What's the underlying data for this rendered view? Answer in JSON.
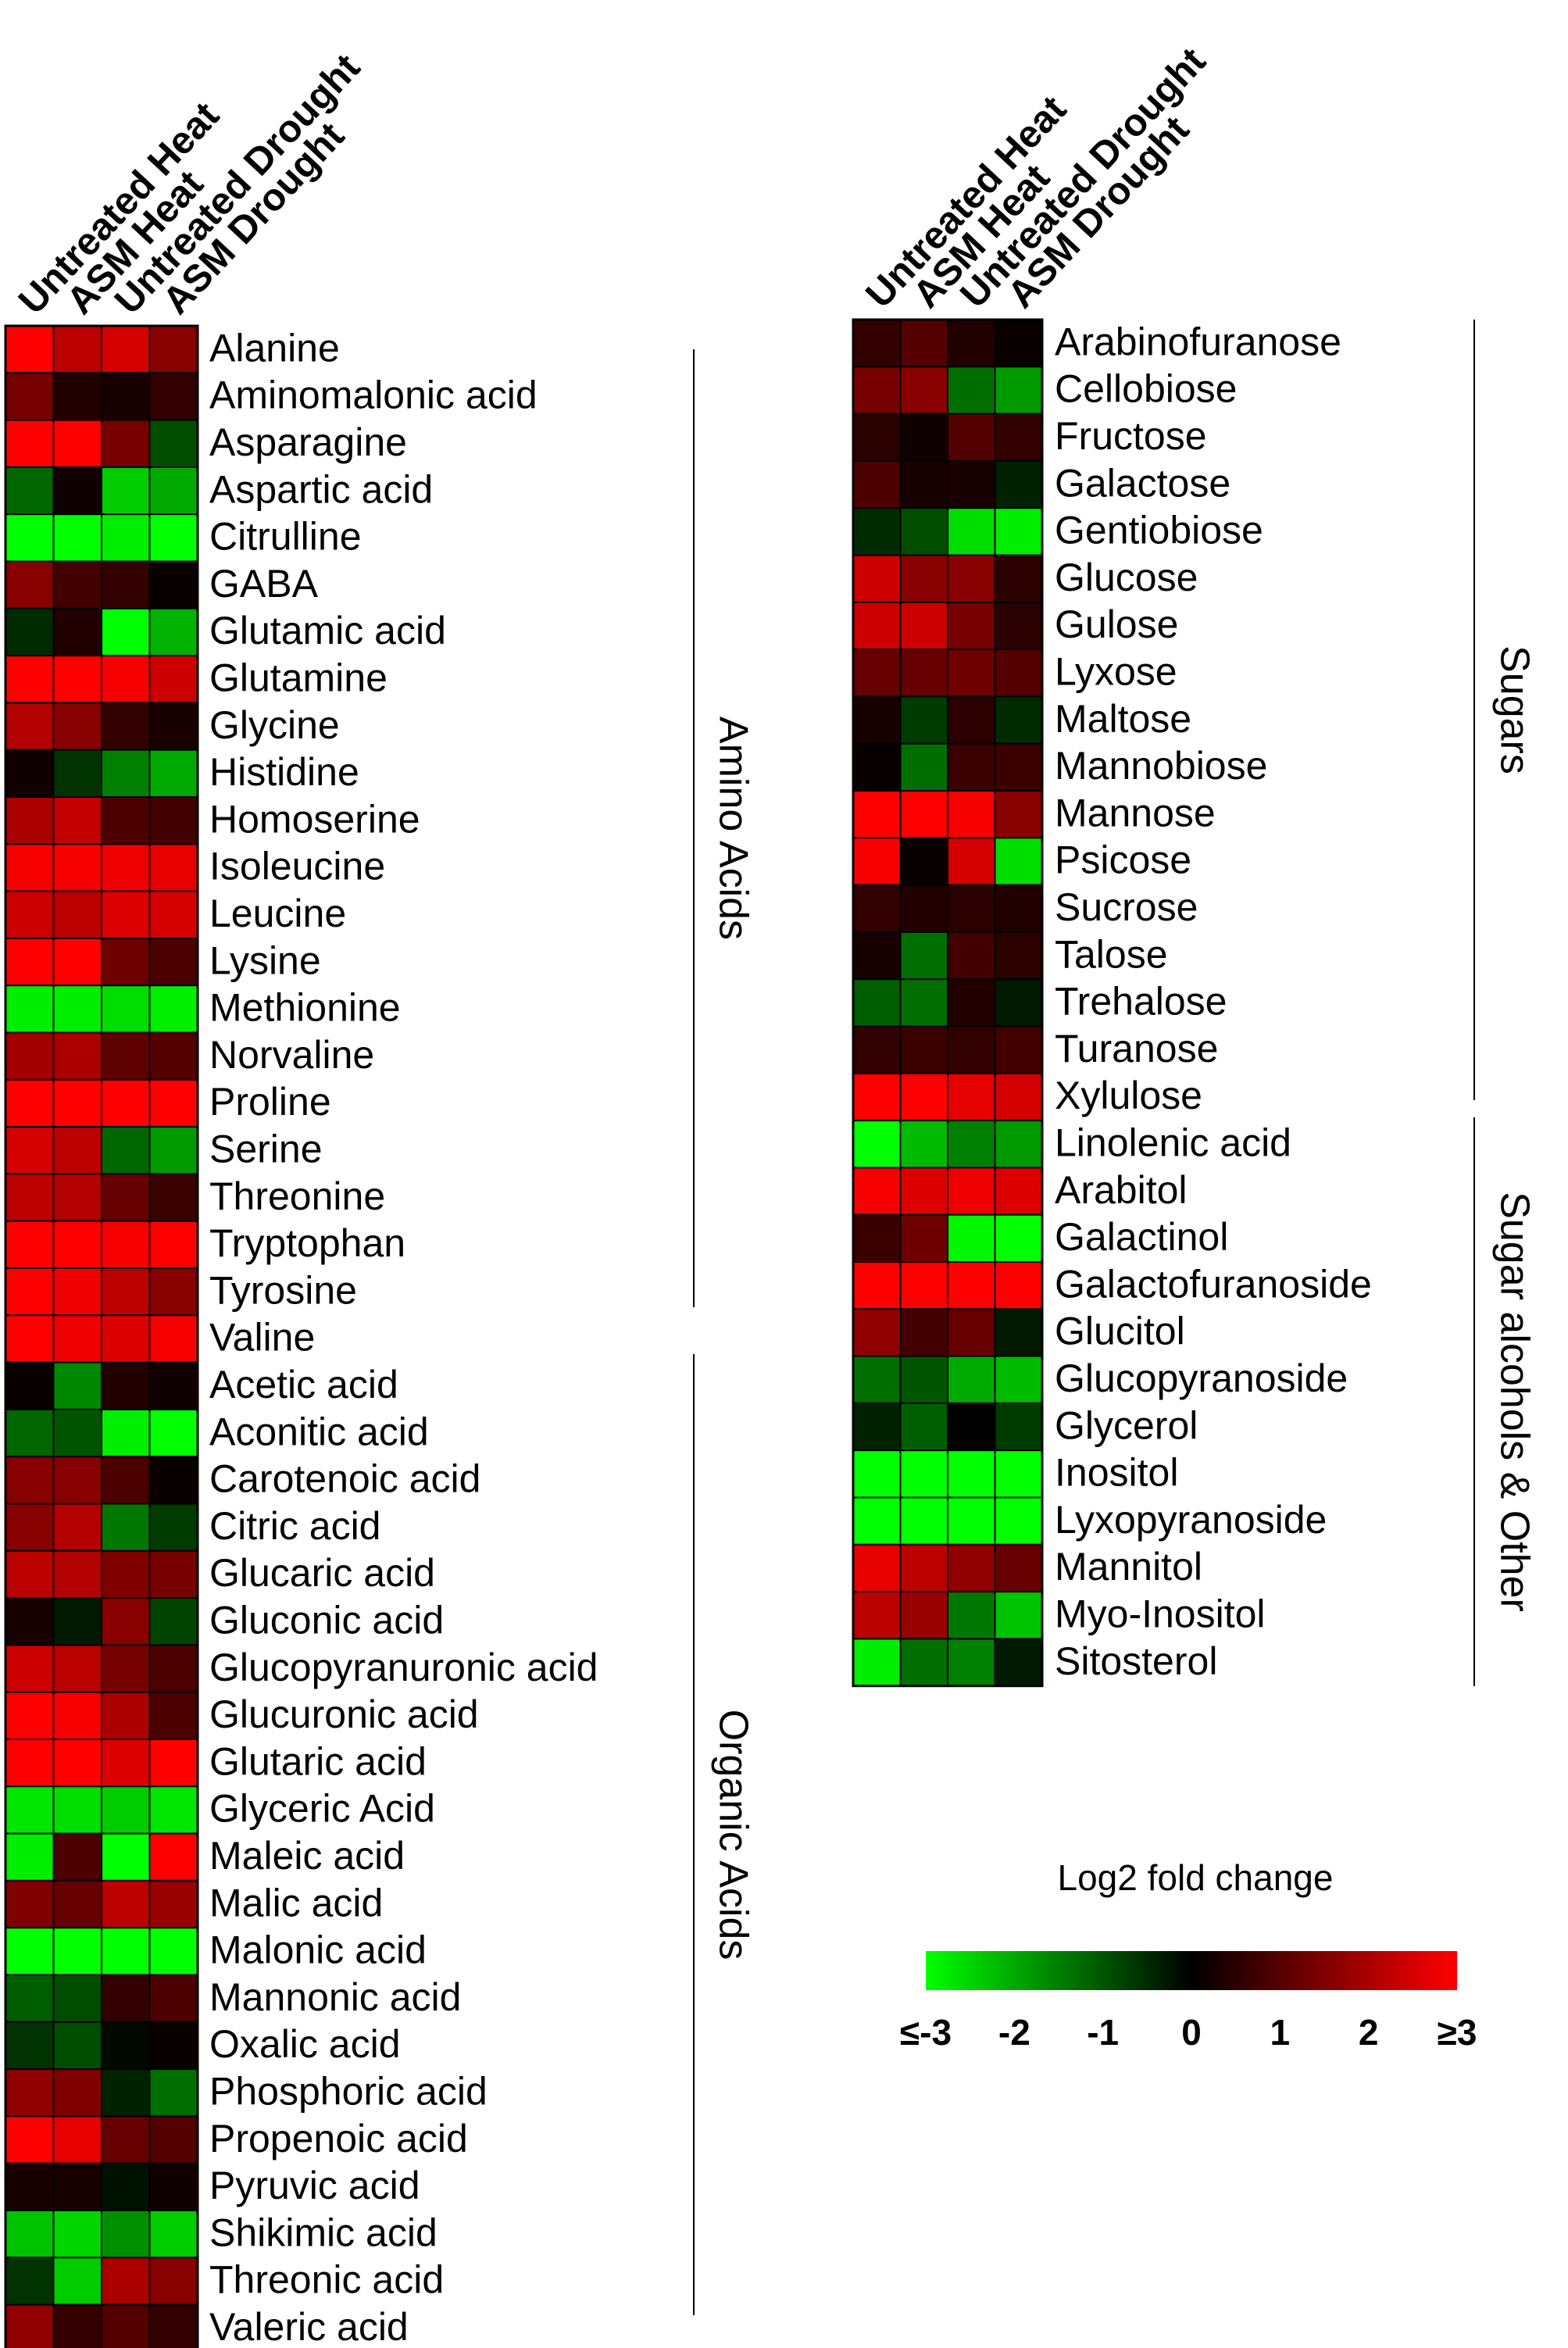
{
  "chart_data": {
    "type": "heatmap",
    "columns": [
      "Untreated Heat",
      "ASM Heat",
      "Untreated Drought",
      "ASM Drought"
    ],
    "scale": {
      "title": "Log2 fold change",
      "min": -3,
      "max": 3,
      "ticks": [
        "≤-3",
        "-2",
        "-1",
        "0",
        "1",
        "2",
        "≥3"
      ],
      "low_color": "#00ff00",
      "mid_color": "#000000",
      "high_color": "#ff0000"
    },
    "panels": [
      {
        "rows": [
          {
            "name": "Alanine",
            "values": [
              3.0,
              2.2,
              2.5,
              1.6
            ]
          },
          {
            "name": "Aminomalonic acid",
            "values": [
              1.4,
              0.4,
              0.3,
              0.6
            ]
          },
          {
            "name": "Asparagine",
            "values": [
              3.0,
              3.0,
              1.4,
              -0.9
            ]
          },
          {
            "name": "Aspartic acid",
            "values": [
              -1.2,
              0.2,
              -2.4,
              -2.0
            ]
          },
          {
            "name": "Citrulline",
            "values": [
              -3.0,
              -3.0,
              -2.8,
              -3.0
            ]
          },
          {
            "name": "GABA",
            "values": [
              1.6,
              0.8,
              0.6,
              0.1
            ]
          },
          {
            "name": "Glutamic acid",
            "values": [
              -0.5,
              0.4,
              -3.0,
              -2.1
            ]
          },
          {
            "name": "Glutamine",
            "values": [
              3.0,
              3.0,
              2.9,
              2.4
            ]
          },
          {
            "name": "Glycine",
            "values": [
              2.1,
              1.6,
              0.6,
              0.3
            ]
          },
          {
            "name": "Histidine",
            "values": [
              0.2,
              -0.6,
              -1.5,
              -2.0
            ]
          },
          {
            "name": "Homoserine",
            "values": [
              2.0,
              2.3,
              0.9,
              0.8
            ]
          },
          {
            "name": "Isoleucine",
            "values": [
              2.9,
              2.9,
              2.8,
              2.7
            ]
          },
          {
            "name": "Leucine",
            "values": [
              2.4,
              2.2,
              2.6,
              2.5
            ]
          },
          {
            "name": "Lysine",
            "values": [
              3.0,
              3.0,
              1.3,
              0.9
            ]
          },
          {
            "name": "Methionine",
            "values": [
              -2.8,
              -2.8,
              -2.6,
              -2.8
            ]
          },
          {
            "name": "Norvaline",
            "values": [
              1.9,
              2.0,
              1.1,
              1.0
            ]
          },
          {
            "name": "Proline",
            "values": [
              3.0,
              3.0,
              3.0,
              3.0
            ]
          },
          {
            "name": "Serine",
            "values": [
              2.5,
              2.2,
              -1.2,
              -1.8
            ]
          },
          {
            "name": "Threonine",
            "values": [
              2.2,
              2.1,
              1.2,
              0.7
            ]
          },
          {
            "name": "Tryptophan",
            "values": [
              3.0,
              3.0,
              2.9,
              3.0
            ]
          },
          {
            "name": "Tyrosine",
            "values": [
              3.0,
              2.8,
              2.2,
              1.6
            ]
          },
          {
            "name": "Valine",
            "values": [
              3.0,
              2.8,
              2.6,
              2.9
            ]
          },
          {
            "name": "Acetic acid",
            "values": [
              0.1,
              -1.6,
              0.4,
              0.2
            ]
          },
          {
            "name": "Aconitic acid",
            "values": [
              -1.2,
              -1.0,
              -2.8,
              -3.0
            ]
          },
          {
            "name": "Carotenoic acid",
            "values": [
              1.6,
              1.6,
              0.9,
              0.1
            ]
          },
          {
            "name": "Citric acid",
            "values": [
              1.6,
              2.1,
              -1.4,
              -0.7
            ]
          },
          {
            "name": "Glucaric acid",
            "values": [
              2.2,
              2.1,
              1.5,
              1.4
            ]
          },
          {
            "name": "Gluconic acid",
            "values": [
              0.3,
              -0.3,
              1.6,
              -0.8
            ]
          },
          {
            "name": "Glucopyranuronic acid",
            "values": [
              2.4,
              2.2,
              1.4,
              0.9
            ]
          },
          {
            "name": "Glucuronic acid",
            "values": [
              3.0,
              2.9,
              2.0,
              0.9
            ]
          },
          {
            "name": "Glutaric acid",
            "values": [
              3.0,
              3.0,
              2.6,
              3.0
            ]
          },
          {
            "name": "Glyceric Acid",
            "values": [
              -2.7,
              -2.6,
              -2.4,
              -2.7
            ]
          },
          {
            "name": "Maleic acid",
            "values": [
              -2.8,
              0.9,
              -3.0,
              3.0
            ]
          },
          {
            "name": "Malic acid",
            "values": [
              1.5,
              1.2,
              2.2,
              1.8
            ]
          },
          {
            "name": "Malonic acid",
            "values": [
              -3.0,
              -3.0,
              -3.0,
              -3.0
            ]
          },
          {
            "name": "Mannonic acid",
            "values": [
              -1.1,
              -0.9,
              0.6,
              0.9
            ]
          },
          {
            "name": "Oxalic acid",
            "values": [
              -0.6,
              -0.9,
              -0.1,
              0.1
            ]
          },
          {
            "name": "Phosphoric acid",
            "values": [
              1.7,
              1.5,
              -0.4,
              -1.3
            ]
          },
          {
            "name": "Propenoic acid",
            "values": [
              3.0,
              2.7,
              1.2,
              1.0
            ]
          },
          {
            "name": "Pyruvic acid",
            "values": [
              0.3,
              0.3,
              -0.2,
              0.2
            ]
          },
          {
            "name": "Shikimic acid",
            "values": [
              -2.3,
              -2.5,
              -1.7,
              -2.4
            ]
          },
          {
            "name": "Threonic acid",
            "values": [
              -0.6,
              -2.4,
              2.0,
              1.6
            ]
          },
          {
            "name": "Valeric acid",
            "values": [
              1.7,
              0.6,
              1.0,
              0.6
            ]
          }
        ],
        "groups": [
          {
            "label": "Amino Acids",
            "start": 0,
            "end": 21
          },
          {
            "label": "Organic Acids",
            "start": 22,
            "end": 42
          }
        ]
      },
      {
        "rows": [
          {
            "name": "Arabinofuranose",
            "values": [
              0.6,
              1.0,
              0.4,
              0.1
            ]
          },
          {
            "name": "Cellobiose",
            "values": [
              1.4,
              1.6,
              -1.3,
              -1.8
            ]
          },
          {
            "name": "Fructose",
            "values": [
              0.5,
              0.2,
              1.0,
              0.6
            ]
          },
          {
            "name": "Galactose",
            "values": [
              0.9,
              0.3,
              0.3,
              -0.4
            ]
          },
          {
            "name": "Gentiobiose",
            "values": [
              -0.5,
              -0.9,
              -2.6,
              -2.8
            ]
          },
          {
            "name": "Glucose",
            "values": [
              2.4,
              1.6,
              1.6,
              0.5
            ]
          },
          {
            "name": "Gulose",
            "values": [
              2.4,
              2.4,
              1.4,
              0.5
            ]
          },
          {
            "name": "Lyxose",
            "values": [
              1.2,
              1.2,
              1.3,
              1.0
            ]
          },
          {
            "name": "Maltose",
            "values": [
              0.3,
              -0.7,
              0.5,
              -0.5
            ]
          },
          {
            "name": "Mannobiose",
            "values": [
              0.1,
              -1.3,
              0.7,
              0.7
            ]
          },
          {
            "name": "Mannose",
            "values": [
              3.0,
              3.0,
              2.9,
              1.6
            ]
          },
          {
            "name": "Psicose",
            "values": [
              2.9,
              0.1,
              2.5,
              -2.6
            ]
          },
          {
            "name": "Sucrose",
            "values": [
              0.6,
              0.4,
              0.5,
              0.4
            ]
          },
          {
            "name": "Talose",
            "values": [
              0.3,
              -1.3,
              0.8,
              0.5
            ]
          },
          {
            "name": "Trehalose",
            "values": [
              -1.1,
              -1.3,
              0.4,
              -0.3
            ]
          },
          {
            "name": "Turanose",
            "values": [
              0.6,
              0.7,
              0.6,
              0.8
            ]
          },
          {
            "name": "Xylulose",
            "values": [
              3.0,
              3.0,
              2.7,
              2.5
            ]
          },
          {
            "name": "Linolenic acid",
            "values": [
              -3.0,
              -2.2,
              -1.5,
              -1.8
            ]
          },
          {
            "name": "Arabitol",
            "values": [
              2.9,
              2.6,
              2.8,
              2.6
            ]
          },
          {
            "name": "Galactinol",
            "values": [
              0.7,
              1.3,
              -2.9,
              -3.0
            ]
          },
          {
            "name": "Galactofuranoside",
            "values": [
              3.0,
              3.0,
              3.0,
              3.0
            ]
          },
          {
            "name": "Glucitol",
            "values": [
              1.7,
              0.8,
              1.2,
              -0.3
            ]
          },
          {
            "name": "Glucopyranoside",
            "values": [
              -1.3,
              -1.0,
              -2.0,
              -2.2
            ]
          },
          {
            "name": "Glycerol",
            "values": [
              -0.4,
              -1.1,
              0.0,
              -0.7
            ]
          },
          {
            "name": "Inositol",
            "values": [
              -3.0,
              -3.0,
              -3.0,
              -3.0
            ]
          },
          {
            "name": "Lyxopyranoside",
            "values": [
              -3.0,
              -3.0,
              -3.0,
              -3.0
            ]
          },
          {
            "name": "Mannitol",
            "values": [
              2.7,
              2.2,
              1.7,
              1.2
            ]
          },
          {
            "name": "Myo-Inositol",
            "values": [
              2.2,
              1.8,
              -1.4,
              -2.3
            ]
          },
          {
            "name": "Sitosterol",
            "values": [
              -2.8,
              -1.3,
              -1.5,
              -0.3
            ]
          }
        ],
        "groups": [
          {
            "label": "Sugars",
            "start": 0,
            "end": 16
          },
          {
            "label": "Sugar alcohols & Other",
            "start": 17,
            "end": 28
          }
        ]
      }
    ]
  }
}
